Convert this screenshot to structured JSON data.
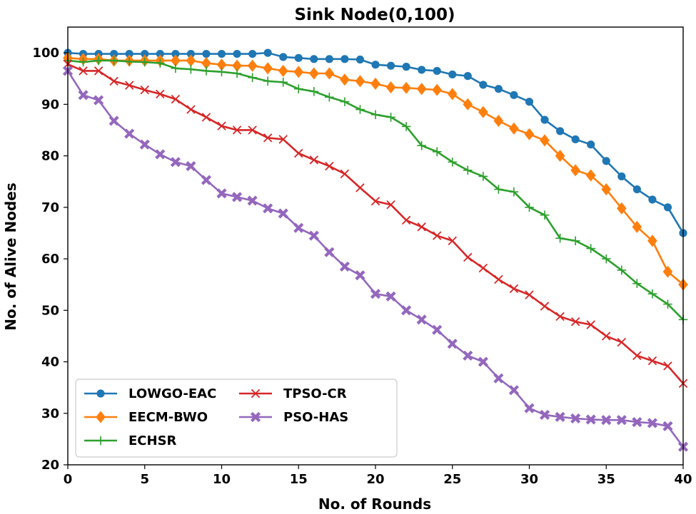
{
  "chart_data": {
    "type": "line",
    "title": "Sink Node(0,100)",
    "xlabel": "No. of Rounds",
    "ylabel": "No. of Alive Nodes",
    "xlim": [
      0,
      40
    ],
    "ylim": [
      20,
      105
    ],
    "xticks": [
      0,
      5,
      10,
      15,
      20,
      25,
      30,
      35,
      40
    ],
    "yticks": [
      20,
      30,
      40,
      50,
      60,
      70,
      80,
      90,
      100
    ],
    "grid": false,
    "legend_position": "lower-left",
    "x": [
      0,
      1,
      2,
      3,
      4,
      5,
      6,
      7,
      8,
      9,
      10,
      11,
      12,
      13,
      14,
      15,
      16,
      17,
      18,
      19,
      20,
      21,
      22,
      23,
      24,
      25,
      26,
      27,
      28,
      29,
      30,
      31,
      32,
      33,
      34,
      35,
      36,
      37,
      38,
      39,
      40
    ],
    "series": [
      {
        "name": "LOWGO-EAC",
        "color": "#1f77b4",
        "marker": "circle",
        "values": [
          100,
          99.8,
          99.8,
          99.8,
          99.8,
          99.8,
          99.8,
          99.8,
          99.8,
          99.8,
          99.8,
          99.8,
          99.8,
          100,
          99.2,
          99,
          98.8,
          98.8,
          98.8,
          98.7,
          97.7,
          97.5,
          97.3,
          96.7,
          96.5,
          95.8,
          95.5,
          93.8,
          93,
          91.8,
          90.5,
          87,
          84.8,
          83.2,
          82.2,
          79,
          76,
          73.5,
          71.5,
          70,
          65
        ]
      },
      {
        "name": "EECM-BWO",
        "color": "#ff7f0e",
        "marker": "diamond",
        "values": [
          99,
          98.8,
          98.8,
          98.5,
          98.5,
          98.5,
          98.5,
          98.5,
          98.5,
          98,
          97.7,
          97.5,
          97.5,
          97,
          96.5,
          96.3,
          96,
          96,
          94.8,
          94.5,
          94,
          93.3,
          93.2,
          93,
          92.8,
          92,
          90,
          88.5,
          86.8,
          85.3,
          84.2,
          83,
          80,
          77.2,
          76.2,
          73.5,
          69.8,
          66.2,
          63.5,
          57.5,
          55
        ]
      },
      {
        "name": "ECHSR",
        "color": "#2ca02c",
        "marker": "plus",
        "values": [
          98.5,
          98.2,
          98.5,
          98.5,
          98.3,
          98.2,
          98,
          97,
          96.8,
          96.5,
          96.3,
          96,
          95.2,
          94.5,
          94.3,
          93,
          92.5,
          91.4,
          90.5,
          89,
          88,
          87.5,
          85.7,
          82,
          80.8,
          78.8,
          77.2,
          76,
          73.5,
          73,
          70,
          68.5,
          64,
          63.5,
          62,
          60,
          57.8,
          55.2,
          53.2,
          51.2,
          48.2
        ]
      },
      {
        "name": "TPSO-CR",
        "color": "#d62728",
        "marker": "x",
        "values": [
          97.8,
          96.5,
          96.5,
          94.5,
          93.7,
          92.8,
          92,
          91,
          89,
          87.5,
          85.8,
          85,
          85,
          83.5,
          83.2,
          80.5,
          79.2,
          78,
          76.5,
          73.8,
          71.2,
          70.5,
          67.5,
          66.2,
          64.5,
          63.5,
          60.3,
          58.2,
          56,
          54.2,
          53,
          50.8,
          48.8,
          47.8,
          47.2,
          45,
          43.8,
          41.2,
          40.2,
          39.2,
          35.8
        ]
      },
      {
        "name": "PSO-HAS",
        "color": "#9467bd",
        "marker": "xfilled",
        "values": [
          96.5,
          91.8,
          90.8,
          86.8,
          84.3,
          82.2,
          80.3,
          78.8,
          78,
          75.3,
          72.7,
          72,
          71.3,
          69.8,
          68.8,
          66,
          64.5,
          61.3,
          58.5,
          56.8,
          53.2,
          52.7,
          50,
          48.2,
          46.2,
          43.5,
          41.2,
          40,
          36.8,
          34.5,
          31,
          29.7,
          29.3,
          29,
          28.8,
          28.7,
          28.7,
          28.3,
          28.1,
          27.5,
          23.5
        ]
      }
    ]
  }
}
